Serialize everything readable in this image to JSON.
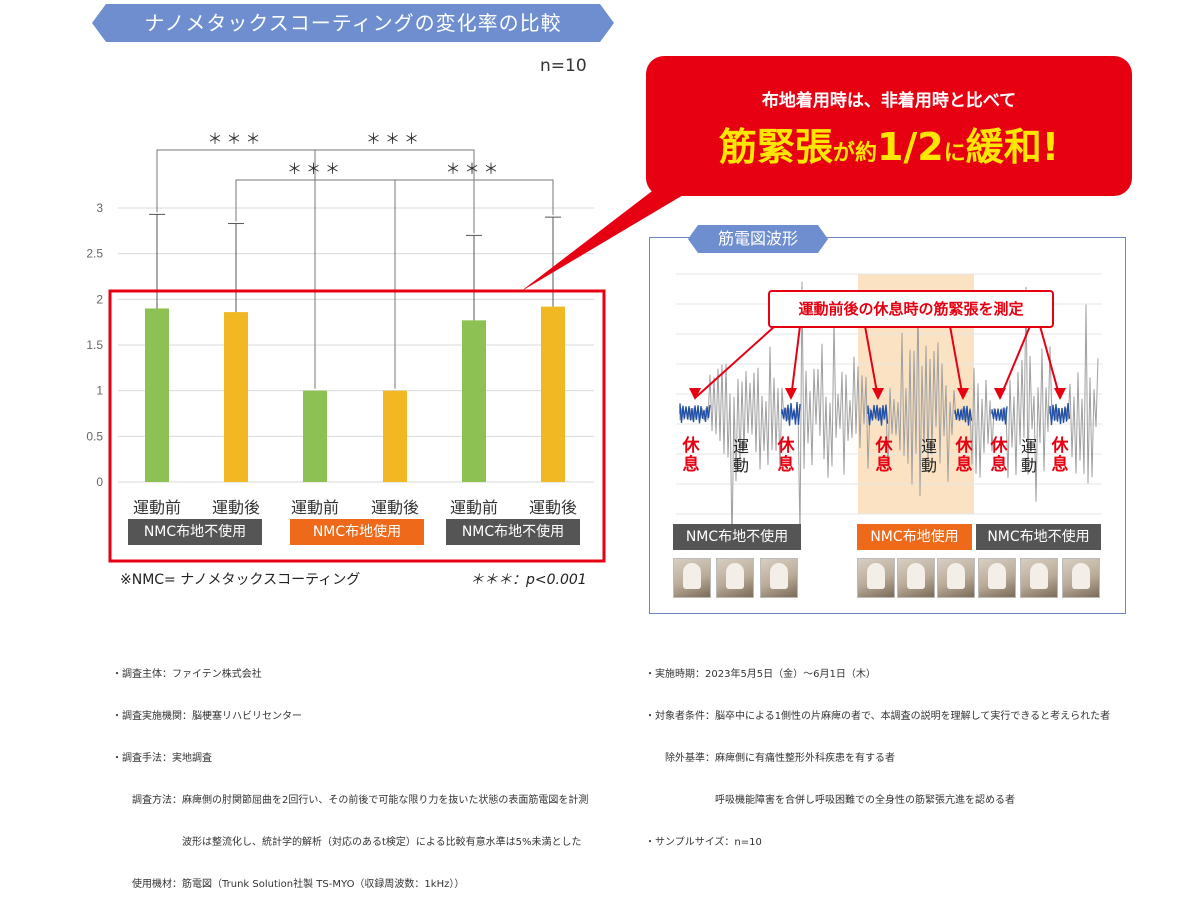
{
  "title": "ナノメタックスコーティングの変化率の比較",
  "sample_note": "n=10",
  "callout": {
    "line1": "布地着用時は、非着用時と比べて",
    "line2_parts": [
      "筋緊張",
      "が",
      "約",
      "1/2",
      "に",
      "緩和",
      "!"
    ]
  },
  "chart_data": {
    "type": "bar",
    "categories": [
      "運動前",
      "運動後",
      "運動前",
      "運動後",
      "運動前",
      "運動後"
    ],
    "values": [
      1.9,
      1.86,
      1.0,
      1.0,
      1.77,
      1.92
    ],
    "error_upper": [
      2.93,
      2.83,
      1.0,
      1.0,
      2.7,
      2.9
    ],
    "bar_colors": [
      "#8dc153",
      "#f2b823",
      "#8dc153",
      "#f2b823",
      "#8dc153",
      "#f2b823"
    ],
    "ylim": [
      0,
      3
    ],
    "yticks": [
      "0",
      "0.5",
      "1",
      "1.5",
      "2",
      "2.5",
      "3"
    ],
    "groups": [
      {
        "label": "NMC布地不使用",
        "color": "#555555"
      },
      {
        "label": "NMC布地使用",
        "color": "#ee6a1a"
      },
      {
        "label": "NMC布地不使用",
        "color": "#555555"
      }
    ],
    "significance": [
      {
        "from": 0,
        "to": 2,
        "label": "＊＊＊"
      },
      {
        "from": 2,
        "to": 4,
        "label": "＊＊＊"
      },
      {
        "from": 1,
        "to": 3,
        "label": "＊＊＊"
      },
      {
        "from": 3,
        "to": 5,
        "label": "＊＊＊"
      }
    ],
    "grid": true
  },
  "footnote_nmc": "※NMC= ナノメタックスコーティング",
  "footnote_sig": "＊＊＊：p<0.001",
  "emg": {
    "title": "筋電図波形",
    "callout": "運動前後の休息時の筋緊張を測定",
    "rest_label": "休息",
    "move_label": "運動",
    "tags": [
      {
        "label": "NMC布地不使用",
        "color": "#555555"
      },
      {
        "label": "NMC布地使用",
        "color": "#ee6a1a"
      },
      {
        "label": "NMC布地不使用",
        "color": "#555555"
      }
    ]
  },
  "info_left": [
    "・調査主体：ファイテン株式会社",
    "・調査実施機関：脳梗塞リハビリセンター",
    "・調査手法：実地調査",
    "　　調査方法：麻痺側の肘関節屈曲を2回行い、その前後で可能な限り力を抜いた状態の表面筋電図を計測",
    "　　　　　　　波形は整流化し、統計学的解析（対応のあるt検定）による比較有意水準は5%未満とした",
    "　　使用機材：筋電図（Trunk Solution社製 TS-MYO（収録周波数：1kHz））"
  ],
  "info_right": [
    "・実施時期：2023年5月5日（金）〜6月1日（木）",
    "・対象者条件：脳卒中による1側性の片麻痺の者で、本調査の説明を理解して実行できると考えられた者",
    "　　除外基準：麻痺側に有痛性整形外科疾患を有する者",
    "　　　　　　　呼吸機能障害を合併し呼吸困難での全身性の筋緊張亢進を認める者",
    "・サンプルサイズ：n=10"
  ]
}
